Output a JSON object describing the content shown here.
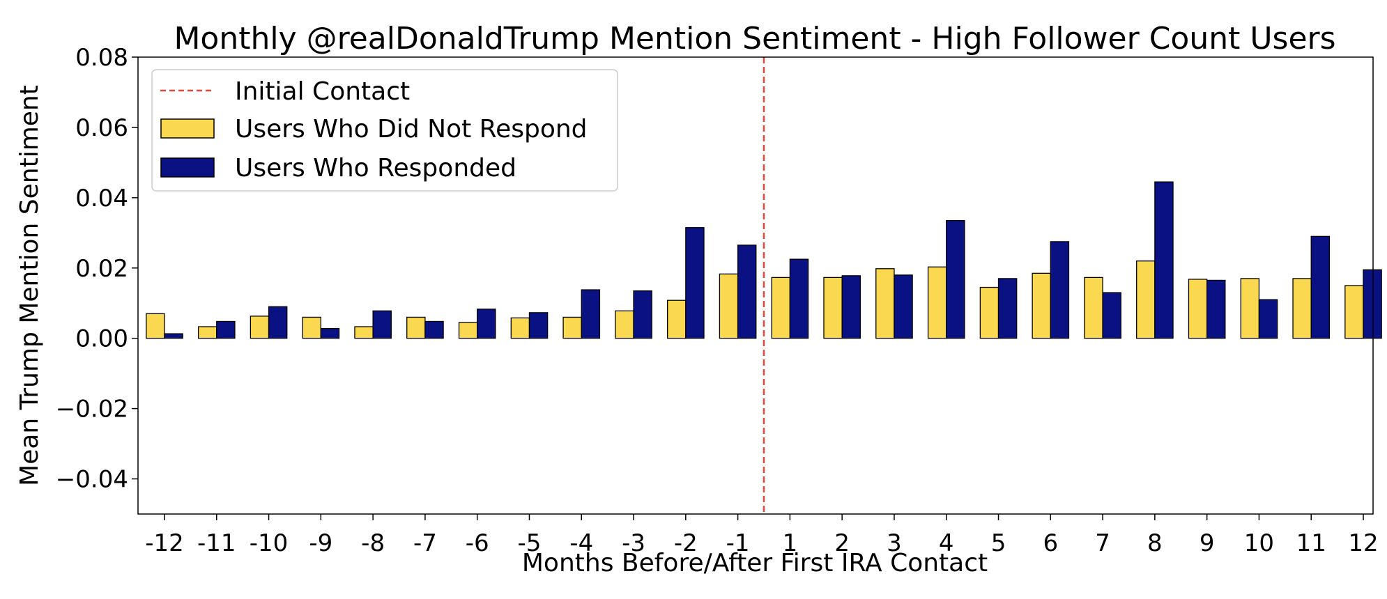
{
  "chart_data": {
    "type": "bar",
    "title": "Monthly @realDonaldTrump Mention Sentiment - High Follower Count Users",
    "xlabel": "Months Before/After First IRA Contact",
    "ylabel": "Mean Trump Mention Sentiment",
    "ylim": [
      -0.05,
      0.08
    ],
    "yticks": [
      -0.04,
      -0.02,
      0.0,
      0.02,
      0.04,
      0.06,
      0.08
    ],
    "ytick_labels": [
      "−0.04",
      "−0.02",
      "0.00",
      "0.02",
      "0.04",
      "0.06",
      "0.08"
    ],
    "categories": [
      "-12",
      "-11",
      "-10",
      "-9",
      "-8",
      "-7",
      "-6",
      "-5",
      "-4",
      "-3",
      "-2",
      "-1",
      "1",
      "2",
      "3",
      "4",
      "5",
      "6",
      "7",
      "8",
      "9",
      "10",
      "11",
      "12"
    ],
    "series": [
      {
        "name": "Users Who Did Not Respond",
        "color": "#fad84f",
        "values": [
          0.007,
          0.0033,
          0.0063,
          0.006,
          0.0033,
          0.006,
          0.0045,
          0.0058,
          0.006,
          0.0078,
          0.0108,
          0.0183,
          0.0173,
          0.0173,
          0.0198,
          0.0203,
          0.0145,
          0.0185,
          0.0173,
          0.022,
          0.0168,
          0.017,
          0.017,
          0.015
        ]
      },
      {
        "name": "Users Who Responded",
        "color": "#0a1283",
        "values": [
          0.0013,
          0.0048,
          0.009,
          0.0028,
          0.0078,
          0.0048,
          0.0083,
          0.0073,
          0.0138,
          0.0135,
          0.0315,
          0.0265,
          0.0225,
          0.0178,
          0.018,
          0.0335,
          0.017,
          0.0275,
          0.013,
          0.0445,
          0.0165,
          0.011,
          0.029,
          0.0195
        ]
      }
    ],
    "vline": {
      "label": "Initial Contact",
      "position_between": [
        "-1",
        "1"
      ],
      "color": "#e8453c",
      "style": "dashed"
    },
    "legend": {
      "location": "upper-left",
      "entries": [
        "Initial Contact",
        "Users Who Did Not Respond",
        "Users Who Responded"
      ]
    },
    "grid": false
  }
}
